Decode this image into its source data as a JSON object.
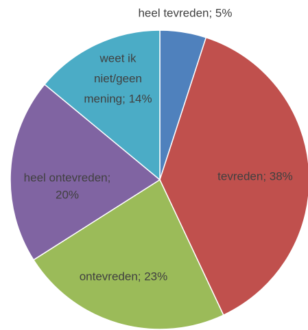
{
  "chart_data": {
    "type": "pie",
    "labels": [
      [
        "heel tevreden; 5%"
      ],
      [
        "tevreden; 38%"
      ],
      [
        "ontevreden; 23%"
      ],
      [
        "heel ontevreden;",
        "20%"
      ],
      [
        "weet ik",
        "niet/geen",
        "mening; 14%"
      ]
    ],
    "values": [
      5,
      38,
      23,
      20,
      14
    ],
    "colors": [
      "#4f81bd",
      "#c0504d",
      "#9bbb59",
      "#8064a2",
      "#4bacc6"
    ]
  }
}
